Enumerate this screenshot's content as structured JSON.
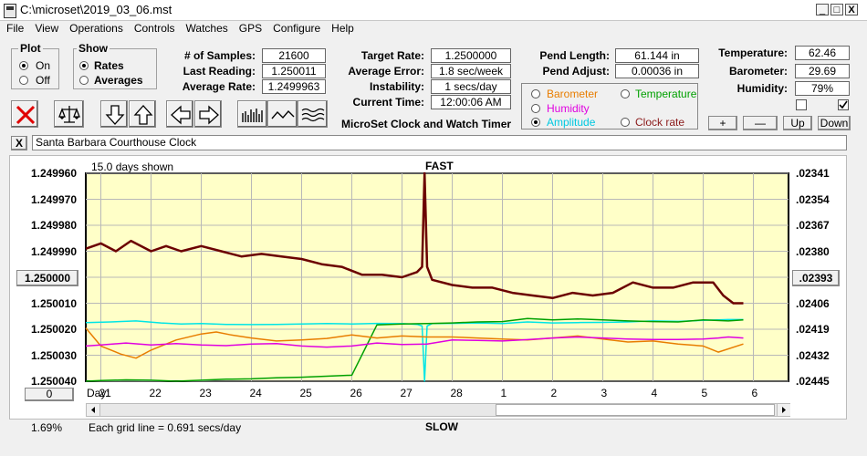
{
  "window": {
    "title": "C:\\microset\\2019_03_06.mst",
    "min": "_",
    "max": "□",
    "close": "X"
  },
  "menu": [
    "File",
    "View",
    "Operations",
    "Controls",
    "Watches",
    "GPS",
    "Configure",
    "Help"
  ],
  "plot_group": {
    "title": "Plot",
    "on": "On",
    "off": "Off",
    "selected": "On"
  },
  "show_group": {
    "title": "Show",
    "rates": "Rates",
    "averages": "Averages",
    "selected": "Rates"
  },
  "stats": {
    "samples_label": "# of Samples:",
    "samples": "21600",
    "last_label": "Last Reading:",
    "last": "1.250011",
    "avg_rate_label": "Average Rate:",
    "avg_rate": "1.2499963",
    "target_label": "Target Rate:",
    "target": "1.2500000",
    "avg_err_label": "Average Error:",
    "avg_err": "1.8 sec/week",
    "instab_label": "Instability:",
    "instab": "1 secs/day",
    "time_label": "Current Time:",
    "time": "12:00:06 AM",
    "pend_len_label": "Pend Length:",
    "pend_len": "61.144 in",
    "pend_adj_label": "Pend Adjust:",
    "pend_adj": "0.00036 in",
    "temp_label": "Temperature:",
    "temp": "62.46",
    "baro_label": "Barometer:",
    "baro": "29.69",
    "hum_label": "Humidity:",
    "hum": "79%"
  },
  "app_name": "MicroSet Clock and Watch Timer",
  "series_select": {
    "barometer": "Barometer",
    "temperature": "Temperature",
    "humidity": "Humidity",
    "amplitude": "Amplitude",
    "clock_rate": "Clock rate",
    "selected": "Amplitude"
  },
  "buttons": {
    "plus": "+",
    "minus": "—",
    "up": "Up",
    "down": "Down",
    "x": "X"
  },
  "clock_name": "Santa Barbara Courthouse Clock",
  "colors": {
    "clock_rate": "#6b0000",
    "amplitude": "#00e5e5",
    "temperature": "#00a000",
    "barometer": "#e87d00",
    "humidity": "#e000e0",
    "plot_bg": "#ffffc8"
  },
  "chart_data": {
    "type": "line",
    "top_label": "FAST",
    "bottom_label": "SLOW",
    "days_shown": "15.0 days shown",
    "grid_note": "Each grid line = 0.691 secs/day",
    "left_axis_ticks": [
      "1.249960",
      "1.249970",
      "1.249980",
      "1.249990",
      "1.250000",
      "1.250010",
      "1.250020",
      "1.250030",
      "1.250040"
    ],
    "left_ylim": [
      1.24996,
      1.25004
    ],
    "right_axis_ticks": [
      ".02341",
      ".02354",
      ".02367",
      ".02380",
      ".02393",
      ".02406",
      ".02419",
      ".02432",
      ".02445"
    ],
    "x_prefix": "Day:",
    "x_ticks": [
      "21",
      "22",
      "23",
      "24",
      "25",
      "26",
      "27",
      "28",
      "1",
      "2",
      "3",
      "4",
      "5",
      "6"
    ],
    "left_button": "1.250000",
    "right_button": ".02393",
    "zero_button": "0",
    "percent": "1.69%",
    "series": [
      {
        "name": "Clock rate",
        "color": "#6b0000",
        "x": [
          20.7,
          21.0,
          21.3,
          21.6,
          22.0,
          22.3,
          22.6,
          23.0,
          23.4,
          23.8,
          24.2,
          24.6,
          25.0,
          25.4,
          25.8,
          26.2,
          26.6,
          27.0,
          27.3,
          27.4,
          27.45,
          27.5,
          27.6,
          28.0,
          28.4,
          28.8,
          29.2,
          29.6,
          30.0,
          30.4,
          30.8,
          31.2,
          31.6,
          32.0,
          32.4,
          32.8,
          33.2,
          33.4,
          33.6,
          33.8
        ],
        "values": [
          1.249989,
          1.249987,
          1.24999,
          1.249986,
          1.24999,
          1.249988,
          1.24999,
          1.249988,
          1.24999,
          1.249992,
          1.249991,
          1.249992,
          1.249993,
          1.249995,
          1.249996,
          1.249999,
          1.249999,
          1.25,
          1.249998,
          1.249996,
          1.24996,
          1.249996,
          1.250001,
          1.250003,
          1.250004,
          1.250004,
          1.250006,
          1.250007,
          1.250008,
          1.250006,
          1.250007,
          1.250006,
          1.250002,
          1.250004,
          1.250004,
          1.250002,
          1.250002,
          1.250007,
          1.25001,
          1.25001
        ]
      },
      {
        "name": "Amplitude",
        "color": "#00e5e5",
        "x": [
          20.7,
          21.2,
          21.7,
          22.2,
          22.6,
          23.0,
          23.5,
          24.0,
          24.5,
          25.0,
          25.5,
          26.0,
          26.5,
          27.0,
          27.3,
          27.4,
          27.45,
          27.5,
          27.6,
          28.0,
          28.5,
          29.0,
          29.5,
          30.0,
          30.5,
          31.0,
          31.5,
          32.0,
          32.5,
          33.0,
          33.5,
          33.8
        ],
        "values": [
          2.4153,
          2.415,
          2.4145,
          2.4155,
          2.416,
          2.4158,
          2.4162,
          2.4163,
          2.4162,
          2.416,
          2.4158,
          2.416,
          2.4157,
          2.4158,
          2.4162,
          2.417,
          2.4445,
          2.417,
          2.4158,
          2.4157,
          2.4155,
          2.4158,
          2.415,
          2.4155,
          2.4153,
          2.4152,
          2.415,
          2.4145,
          2.4147,
          2.4142,
          2.4138,
          2.4138
        ]
      },
      {
        "name": "Temperature",
        "color": "#00a000",
        "x": [
          20.7,
          21.0,
          21.5,
          22.0,
          22.5,
          23.0,
          23.5,
          24.0,
          24.5,
          25.0,
          25.5,
          26.0,
          26.5,
          27.0,
          27.5,
          28.0,
          28.5,
          29.0,
          29.5,
          30.0,
          30.5,
          31.0,
          31.5,
          32.0,
          32.5,
          33.0,
          33.5,
          33.8
        ],
        "values": [
          2.4445,
          2.4442,
          2.4438,
          2.444,
          2.4445,
          2.444,
          2.4435,
          2.4433,
          2.4428,
          2.4425,
          2.442,
          2.4415,
          2.4165,
          2.416,
          2.4158,
          2.4155,
          2.415,
          2.4148,
          2.4133,
          2.414,
          2.4135,
          2.414,
          2.4145,
          2.4148,
          2.415,
          2.414,
          2.4145,
          2.414
        ]
      },
      {
        "name": "Barometer",
        "color": "#e87d00",
        "x": [
          20.7,
          21.0,
          21.4,
          21.7,
          22.0,
          22.5,
          23.0,
          23.3,
          23.6,
          24.0,
          24.5,
          25.0,
          25.5,
          26.0,
          26.5,
          27.0,
          27.5,
          28.0,
          28.5,
          29.0,
          29.5,
          30.0,
          30.5,
          31.0,
          31.5,
          32.0,
          32.5,
          33.0,
          33.3,
          33.8
        ],
        "values": [
          2.418,
          2.427,
          2.431,
          2.433,
          2.429,
          2.424,
          2.421,
          2.42,
          2.4215,
          2.423,
          2.4245,
          2.424,
          2.4232,
          2.4215,
          2.423,
          2.422,
          2.4225,
          2.4225,
          2.423,
          2.4235,
          2.424,
          2.423,
          2.422,
          2.4235,
          2.425,
          2.4245,
          2.426,
          2.427,
          2.43,
          2.426
        ]
      },
      {
        "name": "Humidity",
        "color": "#e000e0",
        "x": [
          20.7,
          21.0,
          21.5,
          22.0,
          22.5,
          23.0,
          23.5,
          24.0,
          24.5,
          25.0,
          25.5,
          26.0,
          26.5,
          27.0,
          27.5,
          28.0,
          28.5,
          29.0,
          29.5,
          30.0,
          30.5,
          31.0,
          31.5,
          32.0,
          32.5,
          33.0,
          33.3,
          33.5,
          33.8
        ],
        "values": [
          2.427,
          2.4265,
          2.4255,
          2.4265,
          2.4258,
          2.4265,
          2.4268,
          2.426,
          2.4258,
          2.427,
          2.4275,
          2.427,
          2.4255,
          2.4262,
          2.426,
          2.424,
          2.4242,
          2.4245,
          2.4238,
          2.423,
          2.4225,
          2.423,
          2.4235,
          2.4237,
          2.4237,
          2.4235,
          2.423,
          2.4225,
          2.423
        ]
      }
    ]
  }
}
